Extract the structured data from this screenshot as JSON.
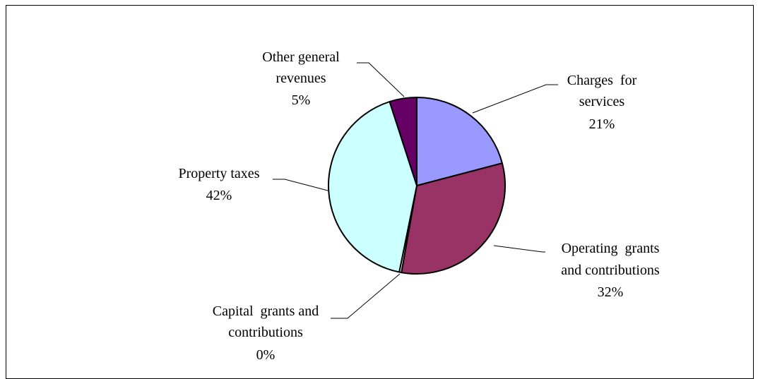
{
  "chart_data": {
    "type": "pie",
    "title": "",
    "slices": [
      {
        "label_lines": [
          "Charges  for",
          "services"
        ],
        "percent_label": "21%",
        "value": 21,
        "color": "#9999ff"
      },
      {
        "label_lines": [
          "Operating  grants",
          "and contributions"
        ],
        "percent_label": "32%",
        "value": 32,
        "color": "#993366"
      },
      {
        "label_lines": [
          "Capital  grants and",
          "contributions"
        ],
        "percent_label": "0%",
        "value": 0.4,
        "color": "#ffffff"
      },
      {
        "label_lines": [
          "Property taxes"
        ],
        "percent_label": "42%",
        "value": 42,
        "color": "#ccffff"
      },
      {
        "label_lines": [
          "Other general",
          "revenues"
        ],
        "percent_label": "5%",
        "value": 5,
        "color": "#660066"
      }
    ],
    "legend": "none",
    "labels": "outside with leader lines"
  }
}
